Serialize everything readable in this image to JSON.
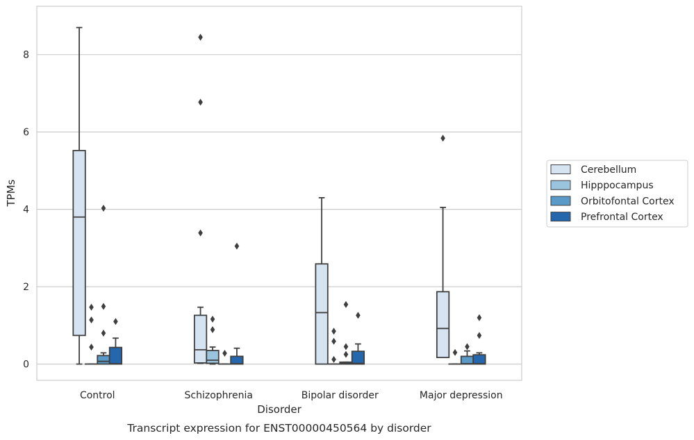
{
  "chart_data": {
    "type": "box",
    "caption": "Transcript expression for ENST00000450564 by disorder",
    "xlabel": "Disorder",
    "ylabel": "TPMs",
    "ylim": [
      -0.42,
      9.25
    ],
    "yticks": [
      0,
      2,
      4,
      6,
      8
    ],
    "grid": "horizontal",
    "legend_position": "right",
    "categories": [
      "Control",
      "Schizophrenia",
      "Bipolar disorder",
      "Major depression"
    ],
    "series": [
      {
        "name": "Cerebellum",
        "color": "#d6e4f2",
        "boxes": [
          {
            "whislo": 0,
            "q1": 0.74,
            "med": 3.8,
            "q3": 5.52,
            "whishi": 8.7,
            "fliers": []
          },
          {
            "whislo": 0.02,
            "q1": 0.03,
            "med": 0.37,
            "q3": 1.26,
            "whishi": 1.47,
            "fliers": [
              3.39,
              6.77,
              8.45
            ]
          },
          {
            "whislo": 0,
            "q1": 0,
            "med": 1.33,
            "q3": 2.59,
            "whishi": 4.3,
            "fliers": []
          },
          {
            "whislo": 0.17,
            "q1": 0.17,
            "med": 0.92,
            "q3": 1.87,
            "whishi": 4.05,
            "fliers": [
              5.84
            ]
          }
        ]
      },
      {
        "name": "Hipppocampus",
        "color": "#9ac4de",
        "boxes": [
          {
            "whislo": 0,
            "q1": 0,
            "med": 0,
            "q3": 0,
            "whishi": 0,
            "fliers": [
              0.44,
              1.14,
              1.47
            ]
          },
          {
            "whislo": 0,
            "q1": 0.02,
            "med": 0.1,
            "q3": 0.35,
            "whishi": 0.44,
            "fliers": [
              0.89,
              1.16
            ]
          },
          {
            "whislo": 0,
            "q1": 0,
            "med": 0,
            "q3": 0,
            "whishi": 0,
            "fliers": [
              0.12,
              0.59,
              0.85
            ]
          },
          {
            "whislo": 0,
            "q1": 0,
            "med": 0,
            "q3": 0,
            "whishi": 0,
            "fliers": [
              0.3
            ]
          }
        ]
      },
      {
        "name": "Orbitofontal Cortex",
        "color": "#5a9ac9",
        "boxes": [
          {
            "whislo": 0,
            "q1": 0,
            "med": 0.07,
            "q3": 0.22,
            "whishi": 0.29,
            "fliers": [
              0.8,
              1.49,
              4.03
            ]
          },
          {
            "whislo": 0,
            "q1": 0,
            "med": 0,
            "q3": 0,
            "whishi": 0,
            "fliers": [
              0.28
            ]
          },
          {
            "whislo": 0,
            "q1": 0,
            "med": 0.02,
            "q3": 0.05,
            "whishi": 0.05,
            "fliers": [
              0.25,
              0.45,
              1.54
            ]
          },
          {
            "whislo": 0,
            "q1": 0,
            "med": 0.01,
            "q3": 0.2,
            "whishi": 0.34,
            "fliers": [
              0.45
            ]
          }
        ]
      },
      {
        "name": "Prefrontal Cortex",
        "color": "#2567ad",
        "boxes": [
          {
            "whislo": 0,
            "q1": 0,
            "med": 0.01,
            "q3": 0.43,
            "whishi": 0.67,
            "fliers": [
              1.1
            ]
          },
          {
            "whislo": 0,
            "q1": 0,
            "med": 0.01,
            "q3": 0.2,
            "whishi": 0.41,
            "fliers": [
              3.05
            ]
          },
          {
            "whislo": 0,
            "q1": 0,
            "med": 0.02,
            "q3": 0.33,
            "whishi": 0.52,
            "fliers": [
              1.26
            ]
          },
          {
            "whislo": 0,
            "q1": 0,
            "med": 0.01,
            "q3": 0.24,
            "whishi": 0.29,
            "fliers": [
              0.74,
              1.2
            ]
          }
        ]
      }
    ]
  }
}
